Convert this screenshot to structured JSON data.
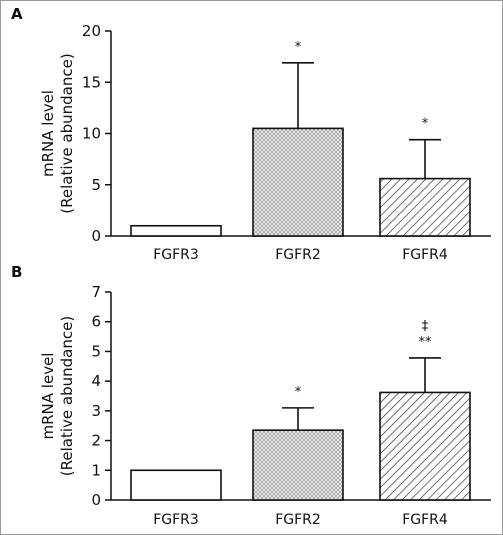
{
  "chart_data": [
    {
      "type": "bar",
      "panel_label": "A",
      "categories": [
        "FGFR3",
        "FGFR2",
        "FGFR4"
      ],
      "values": [
        1.0,
        10.5,
        5.6
      ],
      "error_upper": [
        1.0,
        16.9,
        9.4
      ],
      "patterns": [
        "solid",
        "dotted",
        "hatched"
      ],
      "significance": [
        "",
        "*",
        "*"
      ],
      "ylabel_lines": [
        "mRNA level",
        "(Relative abundance)"
      ],
      "xlabel": "",
      "ylim": [
        0,
        20
      ],
      "yticks": [
        0,
        5,
        10,
        15,
        20
      ],
      "grid": false,
      "legend": "none"
    },
    {
      "type": "bar",
      "panel_label": "B",
      "categories": [
        "FGFR3",
        "FGFR2",
        "FGFR4"
      ],
      "values": [
        1.0,
        2.35,
        3.62
      ],
      "error_upper": [
        1.0,
        3.1,
        4.78
      ],
      "patterns": [
        "solid",
        "dotted",
        "hatched"
      ],
      "significance": [
        "",
        "*",
        "**"
      ],
      "significance_extra": [
        "",
        "",
        "‡"
      ],
      "ylabel_lines": [
        "mRNA level",
        "(Relative abundance)"
      ],
      "xlabel": "",
      "ylim": [
        0,
        7
      ],
      "yticks": [
        0,
        1,
        2,
        3,
        4,
        5,
        6,
        7
      ],
      "grid": false,
      "legend": "none"
    }
  ],
  "colors": {
    "ink": "#111111",
    "bar_fill": "#ffffff",
    "dot_fill": "#e6e6e6",
    "border": "#999999"
  }
}
